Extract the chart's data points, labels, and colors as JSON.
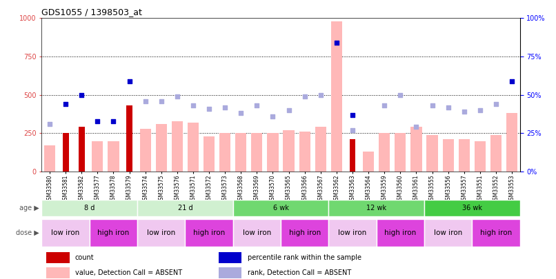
{
  "title": "GDS1055 / 1398503_at",
  "samples": [
    "GSM33580",
    "GSM33581",
    "GSM33582",
    "GSM33577",
    "GSM33578",
    "GSM33579",
    "GSM33574",
    "GSM33575",
    "GSM33576",
    "GSM33571",
    "GSM33572",
    "GSM33573",
    "GSM33568",
    "GSM33569",
    "GSM33570",
    "GSM33565",
    "GSM33566",
    "GSM33567",
    "GSM33562",
    "GSM33563",
    "GSM33564",
    "GSM33559",
    "GSM33560",
    "GSM33561",
    "GSM33555",
    "GSM33556",
    "GSM33557",
    "GSM33551",
    "GSM33552",
    "GSM33553"
  ],
  "count_values": [
    null,
    250,
    290,
    null,
    null,
    430,
    null,
    null,
    null,
    null,
    null,
    null,
    null,
    null,
    null,
    null,
    null,
    null,
    null,
    210,
    null,
    null,
    null,
    null,
    null,
    null,
    null,
    null,
    null,
    null
  ],
  "percentile_rank": [
    null,
    440,
    500,
    330,
    330,
    590,
    null,
    null,
    null,
    null,
    null,
    null,
    null,
    null,
    null,
    null,
    null,
    null,
    840,
    370,
    null,
    null,
    null,
    null,
    null,
    null,
    null,
    null,
    null,
    590
  ],
  "value_absent": [
    170,
    null,
    null,
    200,
    200,
    null,
    280,
    310,
    330,
    320,
    230,
    250,
    250,
    250,
    250,
    270,
    260,
    290,
    980,
    null,
    130,
    250,
    250,
    290,
    240,
    210,
    210,
    200,
    240,
    380
  ],
  "rank_absent": [
    310,
    null,
    null,
    null,
    null,
    null,
    460,
    460,
    490,
    430,
    410,
    420,
    380,
    430,
    360,
    400,
    490,
    500,
    null,
    270,
    null,
    430,
    500,
    290,
    430,
    420,
    390,
    400,
    440,
    null
  ],
  "age_groups": [
    {
      "label": "8 d",
      "start": 0,
      "end": 5,
      "color": "#d0f0d0"
    },
    {
      "label": "21 d",
      "start": 6,
      "end": 11,
      "color": "#d0f0d0"
    },
    {
      "label": "6 wk",
      "start": 12,
      "end": 17,
      "color": "#70d870"
    },
    {
      "label": "12 wk",
      "start": 18,
      "end": 23,
      "color": "#70d870"
    },
    {
      "label": "36 wk",
      "start": 24,
      "end": 29,
      "color": "#44cc44"
    }
  ],
  "dose_groups": [
    {
      "label": "low iron",
      "start": 0,
      "end": 2,
      "color": "#f0c8f0"
    },
    {
      "label": "high iron",
      "start": 3,
      "end": 5,
      "color": "#dd44dd"
    },
    {
      "label": "low iron",
      "start": 6,
      "end": 8,
      "color": "#f0c8f0"
    },
    {
      "label": "high iron",
      "start": 9,
      "end": 11,
      "color": "#dd44dd"
    },
    {
      "label": "low iron",
      "start": 12,
      "end": 14,
      "color": "#f0c8f0"
    },
    {
      "label": "high iron",
      "start": 15,
      "end": 17,
      "color": "#dd44dd"
    },
    {
      "label": "low iron",
      "start": 18,
      "end": 20,
      "color": "#f0c8f0"
    },
    {
      "label": "high iron",
      "start": 21,
      "end": 23,
      "color": "#dd44dd"
    },
    {
      "label": "low iron",
      "start": 24,
      "end": 26,
      "color": "#f0c8f0"
    },
    {
      "label": "high iron",
      "start": 27,
      "end": 29,
      "color": "#dd44dd"
    }
  ],
  "ylim": [
    0,
    1000
  ],
  "yticks_left": [
    0,
    250,
    500,
    750,
    1000
  ],
  "yticks_right": [
    0,
    25,
    50,
    75,
    100
  ],
  "bar_color_absent": "#ffb8b8",
  "bar_color_count": "#cc0000",
  "scatter_color_rank": "#aaaadd",
  "scatter_color_percentile": "#0000cc",
  "legend_items": [
    {
      "color": "#cc0000",
      "label": "count"
    },
    {
      "color": "#0000cc",
      "label": "percentile rank within the sample"
    },
    {
      "color": "#ffb8b8",
      "label": "value, Detection Call = ABSENT"
    },
    {
      "color": "#aaaadd",
      "label": "rank, Detection Call = ABSENT"
    }
  ]
}
